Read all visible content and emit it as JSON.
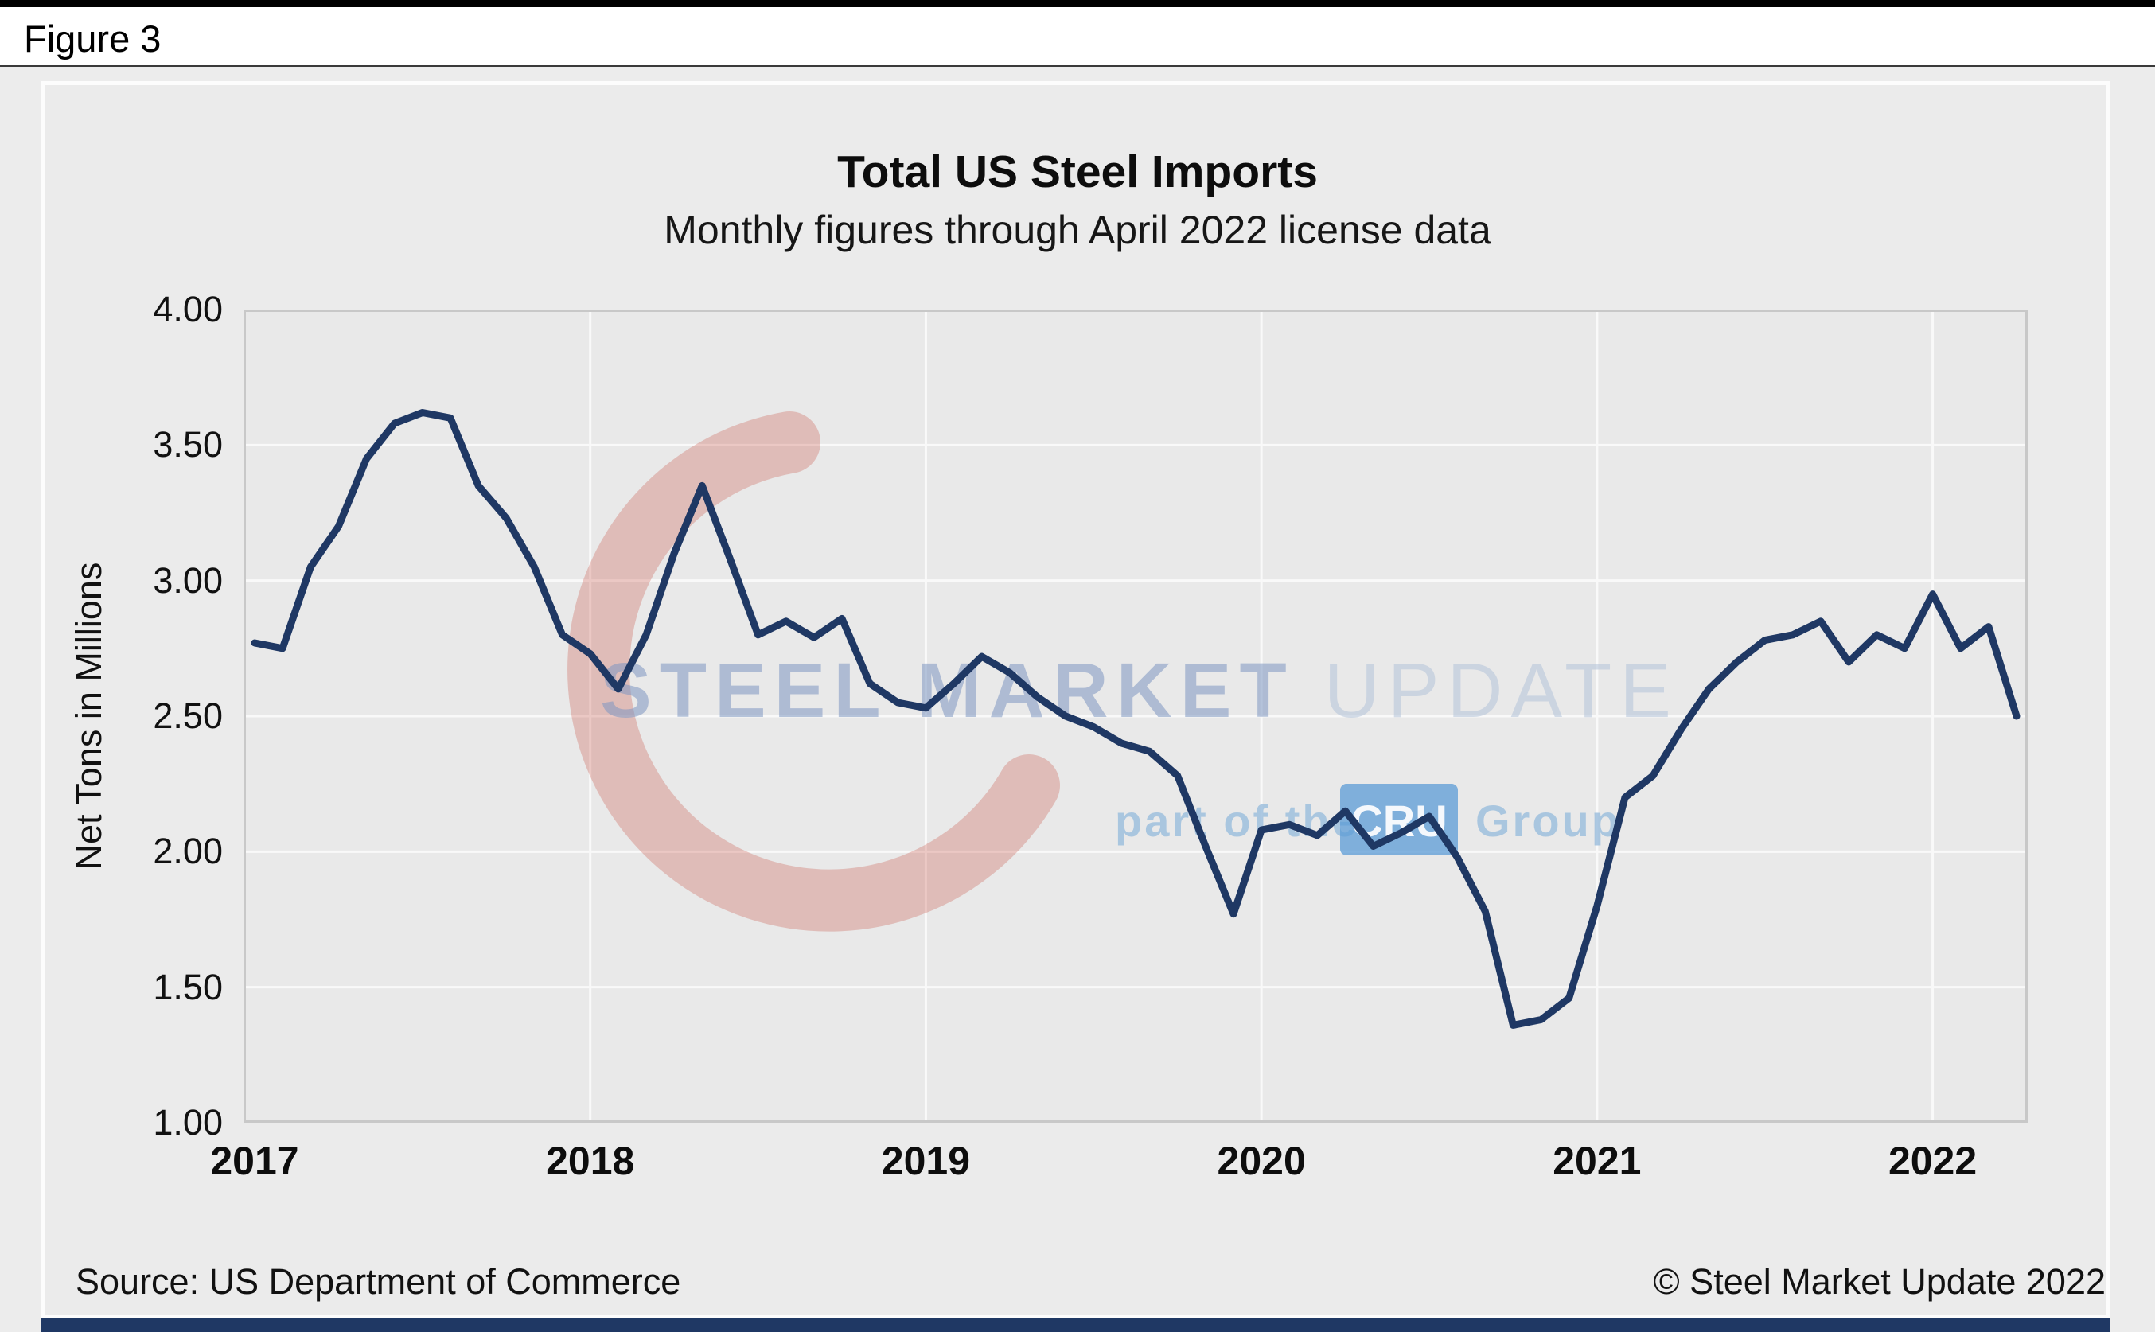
{
  "figure_label": "Figure 3",
  "footer": {
    "source": "Source: US Department of Commerce",
    "copyright": "© Steel Market Update 2022"
  },
  "watermark": {
    "steel_market": "STEEL MARKET ",
    "update": "UPDATE",
    "part_of": "part of the",
    "cru": "CRU",
    "group": "Group"
  },
  "colors": {
    "line": "#1f3864",
    "page_bg": "#ececec",
    "card_bg": "#ebebeb",
    "plot_bg": "#e9e9e9",
    "grid": "#f9f9f9",
    "plot_border": "#c8c8c8",
    "bottom_bar": "#1f3864",
    "watermark_red": "#c9574a",
    "watermark_blue": "#7f97c2",
    "watermark_light_blue": "#b4c3da",
    "watermark_part_blue": "#9fc0de",
    "cru_box": "#5b9bd5"
  },
  "chart_data": {
    "type": "line",
    "title": "Total US Steel Imports",
    "subtitle": "Monthly figures through April 2022 license data",
    "ylabel": "Net Tons in Millions",
    "xlabel": "",
    "ylim": [
      1.0,
      4.0
    ],
    "grid": true,
    "legend": "none",
    "ytick_labels": [
      "4.00",
      "3.50",
      "3.00",
      "2.50",
      "2.00",
      "1.50",
      "1.00"
    ],
    "x_tick_labels": [
      "2017",
      "2018",
      "2019",
      "2020",
      "2021",
      "2022"
    ],
    "x_tick_month_indices": [
      0,
      12,
      24,
      36,
      48,
      60
    ],
    "x": [
      "2017-01",
      "2017-02",
      "2017-03",
      "2017-04",
      "2017-05",
      "2017-06",
      "2017-07",
      "2017-08",
      "2017-09",
      "2017-10",
      "2017-11",
      "2017-12",
      "2018-01",
      "2018-02",
      "2018-03",
      "2018-04",
      "2018-05",
      "2018-06",
      "2018-07",
      "2018-08",
      "2018-09",
      "2018-10",
      "2018-11",
      "2018-12",
      "2019-01",
      "2019-02",
      "2019-03",
      "2019-04",
      "2019-05",
      "2019-06",
      "2019-07",
      "2019-08",
      "2019-09",
      "2019-10",
      "2019-11",
      "2019-12",
      "2020-01",
      "2020-02",
      "2020-03",
      "2020-04",
      "2020-05",
      "2020-06",
      "2020-07",
      "2020-08",
      "2020-09",
      "2020-10",
      "2020-11",
      "2020-12",
      "2021-01",
      "2021-02",
      "2021-03",
      "2021-04",
      "2021-05",
      "2021-06",
      "2021-07",
      "2021-08",
      "2021-09",
      "2021-10",
      "2021-11",
      "2021-12",
      "2022-01",
      "2022-02",
      "2022-03",
      "2022-04"
    ],
    "series": [
      {
        "name": "Total US Steel Imports (Net Tons in Millions)",
        "values": [
          2.77,
          2.75,
          3.05,
          3.2,
          3.45,
          3.58,
          3.62,
          3.6,
          3.35,
          3.23,
          3.05,
          2.8,
          2.73,
          2.6,
          2.8,
          3.1,
          3.35,
          3.08,
          2.8,
          2.85,
          2.79,
          2.86,
          2.62,
          2.55,
          2.53,
          2.62,
          2.72,
          2.66,
          2.57,
          2.5,
          2.46,
          2.4,
          2.37,
          2.28,
          2.02,
          1.77,
          2.08,
          2.1,
          2.06,
          2.15,
          2.02,
          2.07,
          2.13,
          1.98,
          1.78,
          1.36,
          1.38,
          1.46,
          1.8,
          2.2,
          2.28,
          2.45,
          2.6,
          2.7,
          2.78,
          2.8,
          2.85,
          2.7,
          2.8,
          2.75,
          2.95,
          2.75,
          2.83,
          2.5
        ]
      }
    ]
  }
}
